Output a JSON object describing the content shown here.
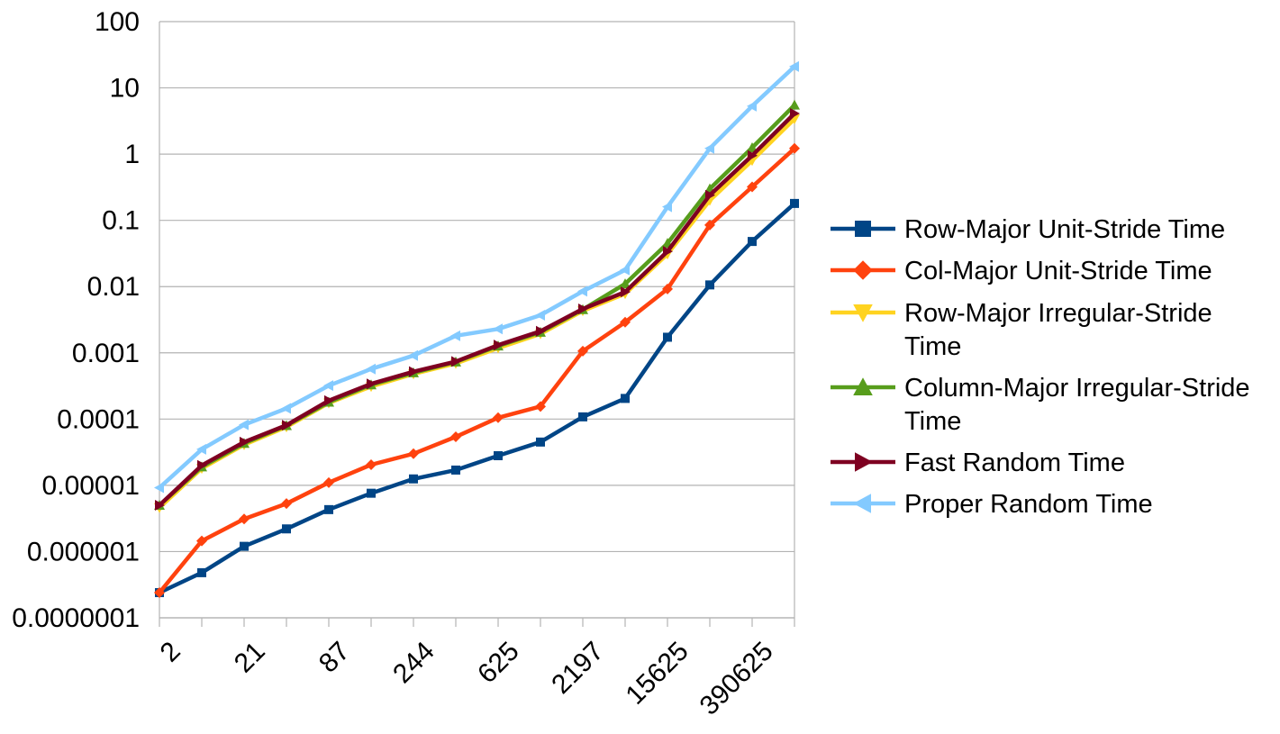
{
  "chart_data": {
    "type": "line",
    "y_scale": "log",
    "ylim": [
      1e-07,
      100
    ],
    "y_tick_labels": [
      "100",
      "10",
      "1",
      "0.1",
      "0.01",
      "0.001",
      "0.0001",
      "0.00001",
      "0.000001",
      "0.0000001"
    ],
    "x": [
      "2",
      "",
      "21",
      "",
      "87",
      "",
      "244",
      "",
      "625",
      "",
      "2197",
      "",
      "15625",
      "",
      "390625",
      ""
    ],
    "x_tick_labels_shown": [
      "2",
      "21",
      "87",
      "244",
      "625",
      "2197",
      "15625",
      "390625"
    ],
    "grid": "horizontal",
    "legend_position": "right",
    "series": [
      {
        "name": "Row-Major Unit-Stride Time",
        "color": "#004586",
        "marker": "square",
        "values": [
          2.4e-07,
          4.8e-07,
          1.2e-06,
          2.2e-06,
          4.3e-06,
          7.6e-06,
          1.25e-05,
          1.7e-05,
          2.8e-05,
          4.5e-05,
          0.000108,
          0.000205,
          0.00172,
          0.0106,
          0.048,
          0.18
        ]
      },
      {
        "name": "Col-Major Unit-Stride Time",
        "color": "#ff420e",
        "marker": "diamond",
        "values": [
          2.4e-07,
          1.45e-06,
          3.1e-06,
          5.3e-06,
          1.1e-05,
          2.05e-05,
          3e-05,
          5.4e-05,
          0.000105,
          0.000155,
          0.00106,
          0.0029,
          0.0092,
          0.085,
          0.32,
          1.22
        ]
      },
      {
        "name": "Row-Major Irregular-Stride Time",
        "color": "#ffd320",
        "marker": "triangle-down",
        "values": [
          4.6e-06,
          1.8e-05,
          4.1e-05,
          7.6e-05,
          0.000175,
          0.00031,
          0.00048,
          0.00069,
          0.00118,
          0.00193,
          0.0043,
          0.0078,
          0.031,
          0.2,
          0.8,
          3.4
        ]
      },
      {
        "name": "Column-Major Irregular-Stride Time",
        "color": "#579d1c",
        "marker": "triangle-up",
        "values": [
          5e-06,
          1.9e-05,
          4.3e-05,
          8e-05,
          0.00018,
          0.00033,
          0.0005,
          0.00073,
          0.00127,
          0.00205,
          0.0045,
          0.011,
          0.045,
          0.3,
          1.25,
          5.5
        ]
      },
      {
        "name": "Fast Random Time",
        "color": "#7e0021",
        "marker": "triangle-right",
        "values": [
          5e-06,
          2e-05,
          4.5e-05,
          8.1e-05,
          0.00019,
          0.00034,
          0.00052,
          0.00074,
          0.00131,
          0.00212,
          0.0046,
          0.0083,
          0.034,
          0.24,
          0.95,
          4.1
        ]
      },
      {
        "name": "Proper Random Time",
        "color": "#83caff",
        "marker": "triangle-left",
        "values": [
          9.2e-06,
          3.5e-05,
          8.2e-05,
          0.000145,
          0.00032,
          0.00057,
          0.00091,
          0.00181,
          0.00229,
          0.0037,
          0.0085,
          0.0178,
          0.16,
          1.22,
          5.3,
          21
        ]
      }
    ]
  }
}
